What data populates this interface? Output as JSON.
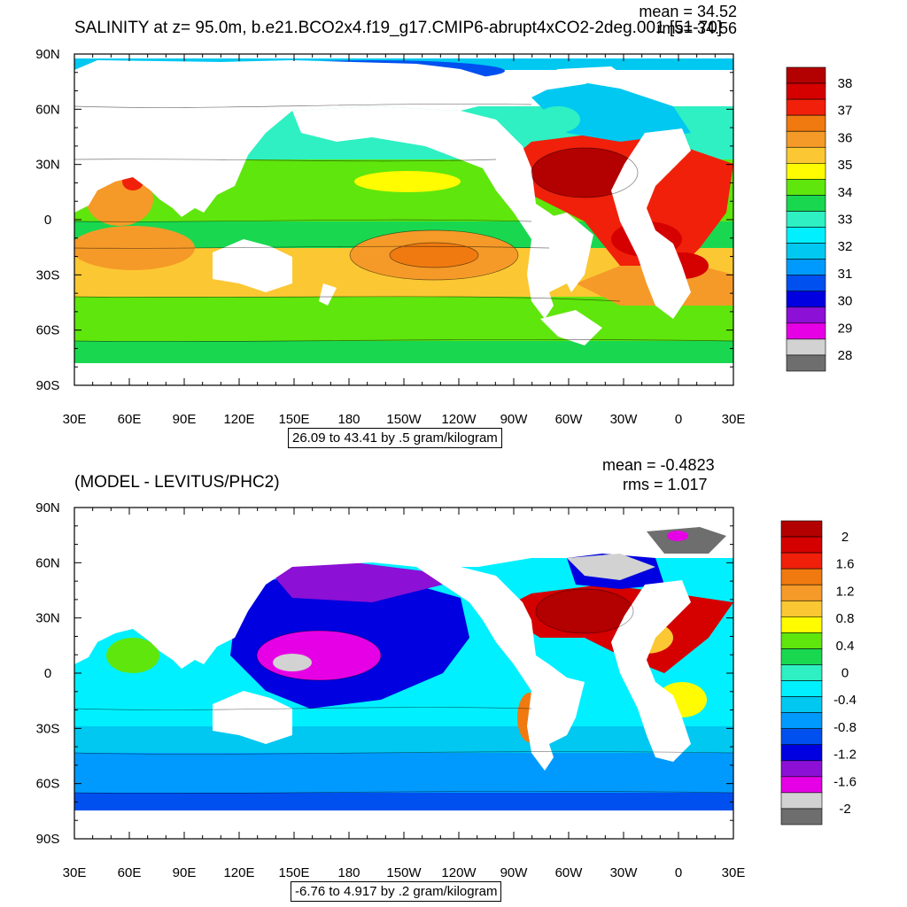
{
  "panel_top": {
    "title": "SALINITY at z=  95.0m, b.e21.BCO2x4.f19_g17.CMIP6-abrupt4xCO2-2deg.001 [51-70]",
    "mean_label": "mean = 34.52",
    "rms_label": "rms= 34.56",
    "range_label": "26.09 to 43.41 by .5 gram/kilogram",
    "colorbar": {
      "labels": [
        "38",
        "37",
        "36",
        "35",
        "34",
        "33",
        "32",
        "31",
        "30",
        "29",
        "28"
      ],
      "colors": [
        "#b30000",
        "#d50000",
        "#f0200a",
        "#f07a10",
        "#f59a28",
        "#fbc833",
        "#fffb00",
        "#5fe60d",
        "#19d850",
        "#2ef0c2",
        "#00f0ff",
        "#00c8f0",
        "#009aff",
        "#0050ef",
        "#0000e0",
        "#8c10d5",
        "#e600e6",
        "#d2d2d2",
        "#6e6e6e"
      ]
    }
  },
  "panel_bottom": {
    "title": "(MODEL - LEVITUS/PHC2)",
    "mean_label": "mean = -0.4823",
    "rms_label": "rms = 1.017",
    "range_label": "-6.76 to 4.917 by .2 gram/kilogram",
    "colorbar": {
      "labels": [
        "2",
        "1.6",
        "1.2",
        "0.8",
        "0.4",
        "0",
        "-0.4",
        "-0.8",
        "-1.2",
        "-1.6",
        "-2"
      ],
      "colors": [
        "#b30000",
        "#d50000",
        "#f0200a",
        "#f07a10",
        "#f59a28",
        "#fbc833",
        "#fffb00",
        "#5fe60d",
        "#19d850",
        "#2ef0c2",
        "#00f0ff",
        "#00c8f0",
        "#009aff",
        "#0050ef",
        "#0000e0",
        "#8c10d5",
        "#e600e6",
        "#d2d2d2",
        "#6e6e6e"
      ]
    }
  },
  "x_ticks": [
    "30E",
    "60E",
    "90E",
    "120E",
    "150E",
    "180",
    "150W",
    "120W",
    "90W",
    "60W",
    "30W",
    "0",
    "30E"
  ],
  "y_ticks": [
    "90N",
    "60N",
    "30N",
    "0",
    "30S",
    "60S",
    "90S"
  ],
  "land_color": "#ffffff"
}
